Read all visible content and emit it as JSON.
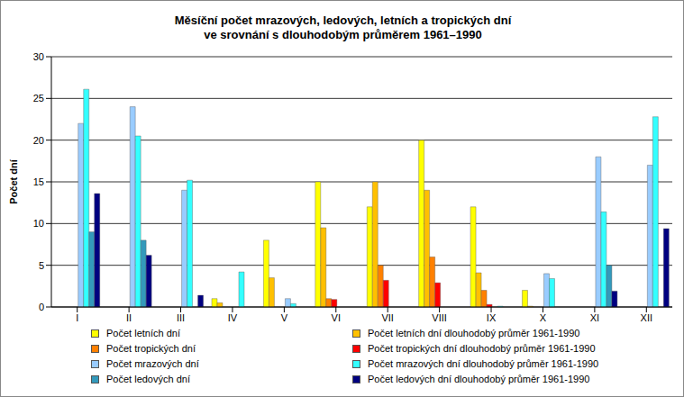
{
  "chart_data": {
    "type": "bar",
    "title": "Měsíční počet mrazových, ledových, letních a tropických dní",
    "subtitle": "ve srovnání s dlouhodobým průměrem 1961–1990",
    "y_label": "Počet dní",
    "categories": [
      "I",
      "II",
      "III",
      "IV",
      "V",
      "VI",
      "VII",
      "VIII",
      "IX",
      "X",
      "XI",
      "XII"
    ],
    "ylim": [
      0,
      30
    ],
    "yticks": [
      0,
      5,
      10,
      15,
      20,
      25,
      30
    ],
    "grid": true,
    "legend": "bottom",
    "series": [
      {
        "name": "Počet letních dní",
        "color": "#FFFF00",
        "values": [
          0,
          0,
          0,
          1,
          8,
          15,
          12,
          20,
          12,
          2,
          0,
          0
        ]
      },
      {
        "name": "Počet letních dní dlouhodobý průměr 1961-1990",
        "color": "#FFC000",
        "values": [
          0,
          0,
          0,
          0.5,
          3.5,
          9.5,
          15,
          14,
          4.1,
          0.1,
          0,
          0
        ]
      },
      {
        "name": "Počet tropických dní",
        "color": "#FF8000",
        "values": [
          0,
          0,
          0,
          0,
          0,
          1,
          5,
          6,
          2,
          0,
          0,
          0
        ]
      },
      {
        "name": "Počet tropických dní dlouhodobý průměr 1961-1990",
        "color": "#FF0000",
        "values": [
          0,
          0,
          0,
          0,
          0,
          0.9,
          3.2,
          2.9,
          0.3,
          0,
          0,
          0
        ]
      },
      {
        "name": "Počet mrazových dní",
        "color": "#99CCFF",
        "values": [
          22,
          24,
          14,
          0,
          1,
          0,
          0,
          0,
          0,
          4,
          18,
          17
        ]
      },
      {
        "name": "Počet mrazových dní dlouhodobý průměr 1961-1990",
        "color": "#33FFFF",
        "values": [
          26.1,
          20.5,
          15.2,
          4.2,
          0.4,
          0,
          0,
          0,
          0.1,
          3.4,
          11.4,
          22.8
        ]
      },
      {
        "name": "Počet ledových dní",
        "color": "#3399BB",
        "values": [
          9,
          8,
          0,
          0,
          0,
          0,
          0,
          0,
          0,
          0,
          5,
          0
        ]
      },
      {
        "name": "Počet ledových dní dlouhodobý průměr 1961-1990",
        "color": "#000080",
        "values": [
          13.6,
          6.2,
          1.4,
          0,
          0,
          0,
          0,
          0,
          0,
          0,
          1.9,
          9.4
        ]
      }
    ]
  }
}
